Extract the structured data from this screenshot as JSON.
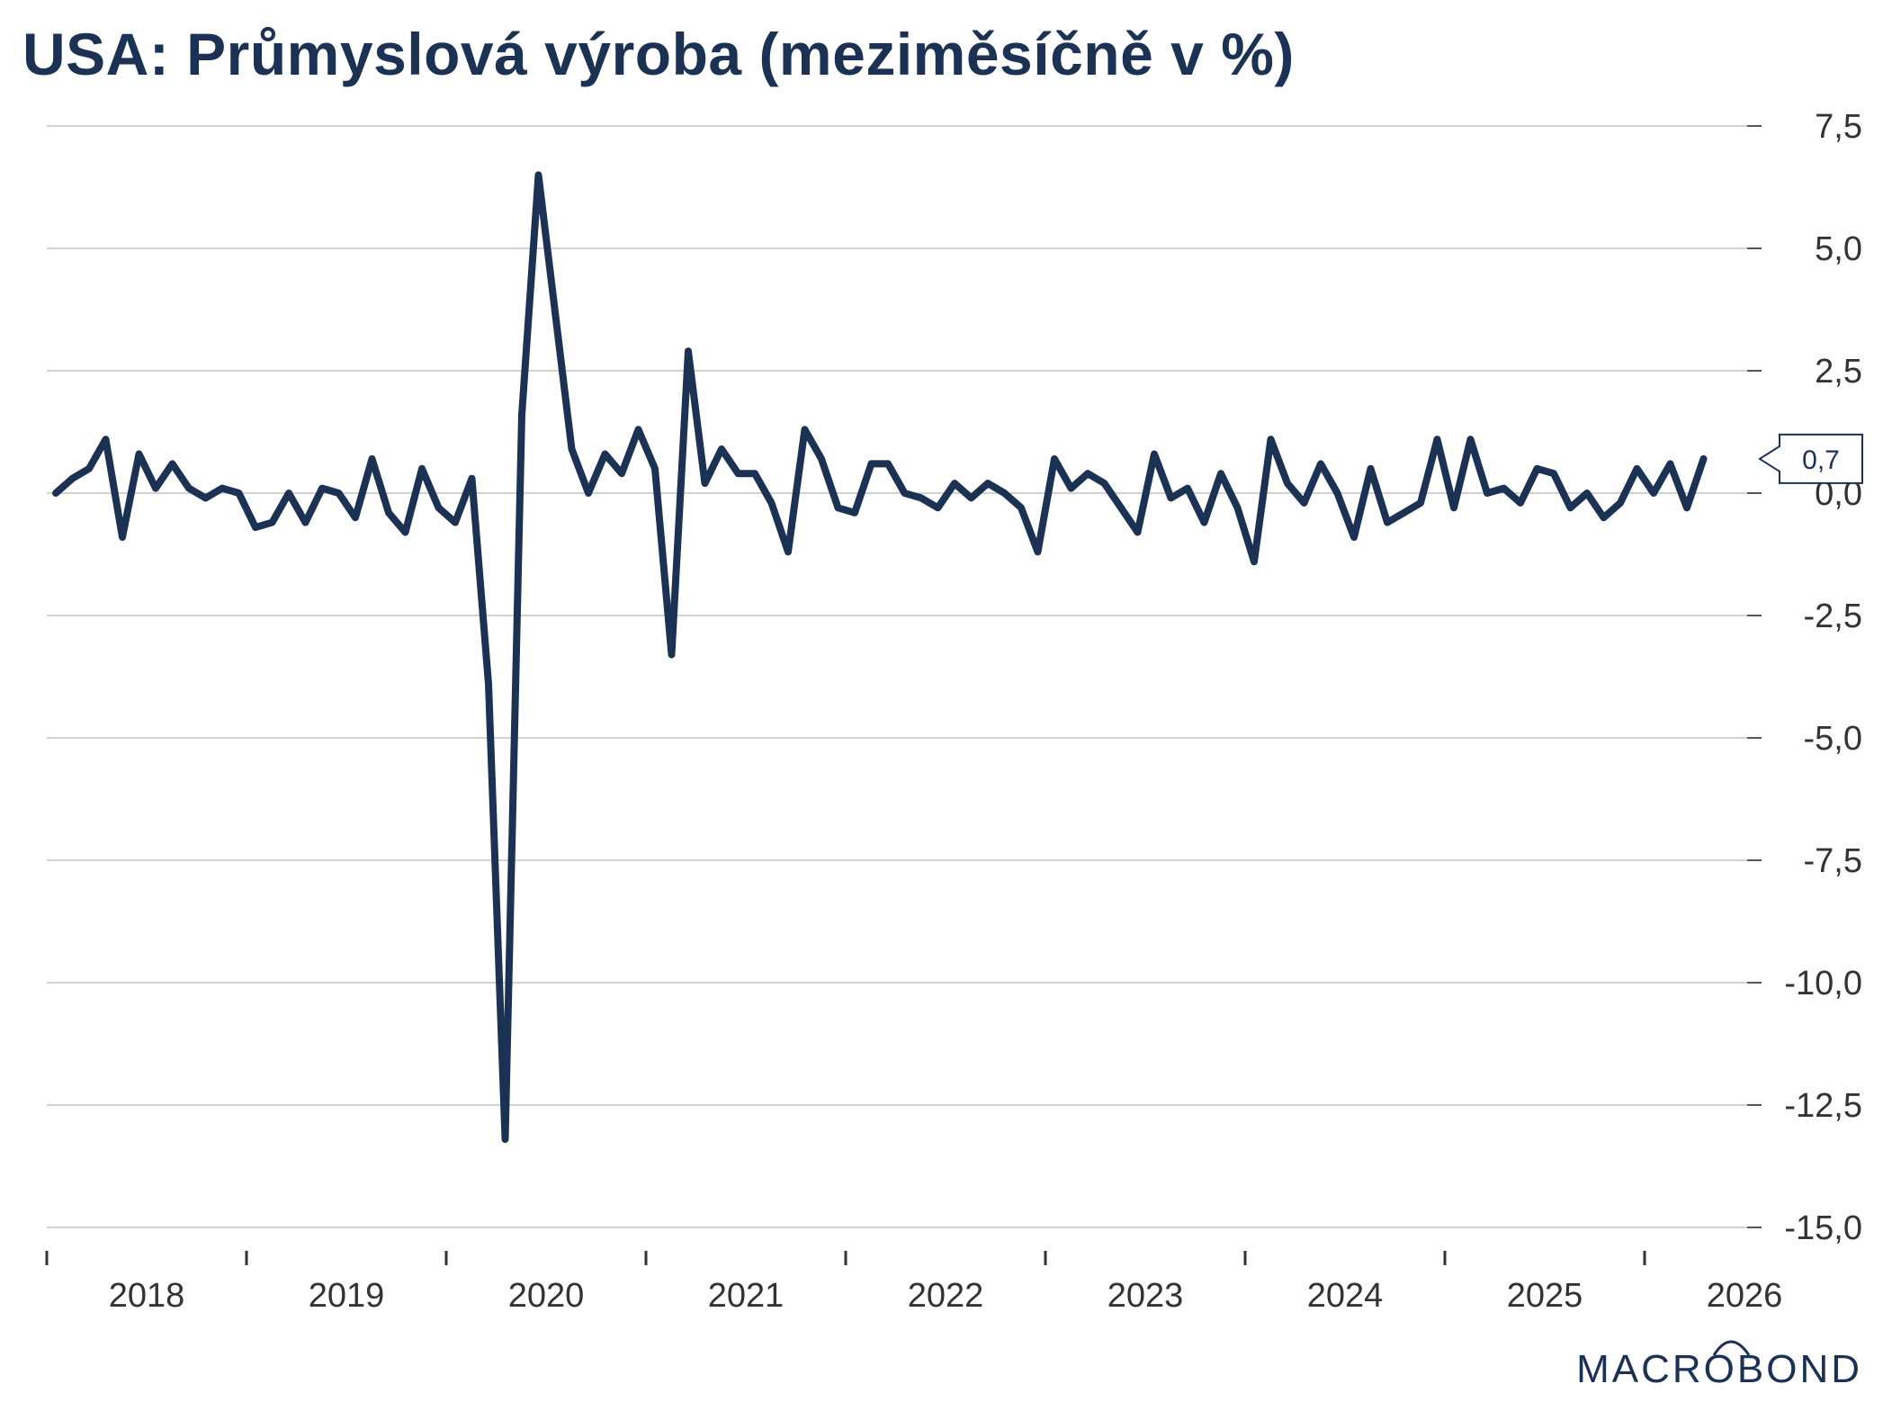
{
  "chart_data": {
    "type": "line",
    "title": "USA: Průmyslová výroba (meziměsíčně v %)",
    "xlabel": "",
    "ylabel": "",
    "ylim": [
      -15,
      7.5
    ],
    "yticks": [
      7.5,
      5.0,
      2.5,
      0.0,
      -2.5,
      -5.0,
      -7.5,
      -10.0,
      -12.5,
      -15.0
    ],
    "ytick_labels": [
      "7,5",
      "5,0",
      "2,5",
      "0,0",
      "-2,5",
      "-5,0",
      "-7,5",
      "-10,0",
      "-12,5",
      "-15,0"
    ],
    "xaxis_labels": [
      "2018",
      "2019",
      "2020",
      "2021",
      "2022",
      "2023",
      "2024",
      "2025",
      "2026"
    ],
    "start": "2018-01",
    "grid": true,
    "line_color": "#1b3254",
    "last_value_label": "0,7",
    "series": [
      {
        "name": "",
        "values": [
          0.0,
          0.3,
          0.5,
          1.1,
          -0.9,
          0.8,
          0.1,
          0.6,
          0.1,
          -0.1,
          0.1,
          0.0,
          -0.7,
          -0.6,
          0.0,
          -0.6,
          0.1,
          0.0,
          -0.5,
          0.7,
          -0.4,
          -0.8,
          0.5,
          -0.3,
          -0.6,
          0.3,
          -3.9,
          -13.2,
          1.6,
          6.5,
          3.7,
          0.9,
          0.0,
          0.8,
          0.4,
          1.3,
          0.5,
          -3.3,
          2.9,
          0.2,
          0.9,
          0.4,
          0.4,
          -0.2,
          -1.2,
          1.3,
          0.7,
          -0.3,
          -0.4,
          0.6,
          0.6,
          0.0,
          -0.1,
          -0.3,
          0.2,
          -0.1,
          0.2,
          0.0,
          -0.3,
          -1.2,
          0.7,
          0.1,
          0.4,
          0.2,
          -0.3,
          -0.8,
          0.8,
          -0.1,
          0.1,
          -0.6,
          0.4,
          -0.3,
          -1.4,
          1.1,
          0.2,
          -0.2,
          0.6,
          0.0,
          -0.9,
          0.5,
          -0.6,
          -0.4,
          -0.2,
          1.1,
          -0.3,
          1.1,
          0.0,
          0.1,
          -0.2,
          0.5,
          0.4,
          -0.3,
          0.0,
          -0.5,
          -0.2,
          0.5,
          0.0,
          0.6,
          -0.3,
          0.7
        ]
      }
    ]
  },
  "branding": {
    "logo_text": "MACROBOND"
  }
}
